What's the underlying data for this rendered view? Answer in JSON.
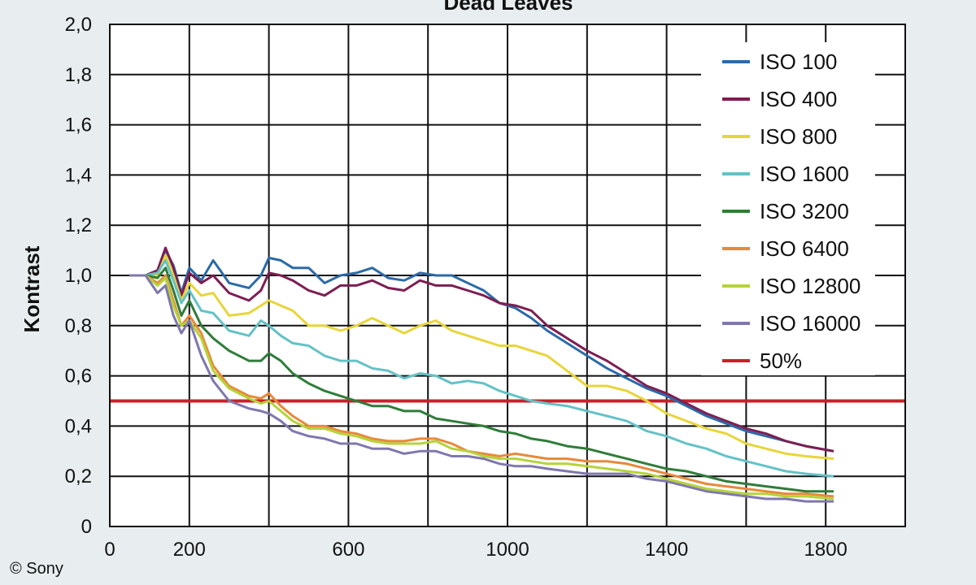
{
  "credit": "© Sony",
  "chart_data": {
    "type": "line",
    "title": "Dead Leaves",
    "xlabel": "",
    "ylabel": "Kontrast",
    "xlim": [
      0,
      2000
    ],
    "ylim": [
      0,
      2.0
    ],
    "x_ticks": [
      0,
      200,
      600,
      1000,
      1400,
      1800
    ],
    "x_tick_labels": [
      "0",
      "200",
      "600",
      "1000",
      "1400",
      "1800"
    ],
    "x_gridlines": [
      200,
      400,
      600,
      800,
      1000,
      1200,
      1400,
      1600,
      1800
    ],
    "y_ticks": [
      0,
      0.2,
      0.4,
      0.6,
      0.8,
      1.0,
      1.2,
      1.4,
      1.6,
      1.8,
      2.0
    ],
    "y_tick_labels": [
      "0",
      "0,2",
      "0,4",
      "0,6",
      "0,8",
      "1,0",
      "1,2",
      "1,4",
      "1,6",
      "1,8",
      "2,0"
    ],
    "grid": true,
    "legend_position": "top-right",
    "reference_line": {
      "name": "50%",
      "y": 0.5,
      "color": "#c8202a"
    },
    "series": [
      {
        "name": "ISO 100",
        "color": "#2b6aa8",
        "x": [
          50,
          90,
          120,
          140,
          160,
          180,
          200,
          230,
          260,
          300,
          350,
          380,
          400,
          430,
          460,
          500,
          540,
          580,
          620,
          660,
          700,
          740,
          780,
          820,
          860,
          900,
          940,
          980,
          1020,
          1060,
          1100,
          1150,
          1200,
          1250,
          1300,
          1350,
          1400,
          1450,
          1500,
          1550,
          1600,
          1650,
          1700,
          1750,
          1820
        ],
        "y": [
          1.0,
          1.0,
          1.02,
          1.1,
          1.04,
          0.93,
          1.03,
          0.98,
          1.06,
          0.97,
          0.95,
          1.0,
          1.07,
          1.06,
          1.03,
          1.03,
          0.97,
          1.0,
          1.01,
          1.03,
          0.99,
          0.98,
          1.01,
          1.0,
          1.0,
          0.97,
          0.94,
          0.89,
          0.87,
          0.83,
          0.78,
          0.73,
          0.68,
          0.63,
          0.59,
          0.55,
          0.52,
          0.48,
          0.44,
          0.41,
          0.38,
          0.36,
          0.34,
          0.32,
          0.3
        ]
      },
      {
        "name": "ISO 400",
        "color": "#7d1e52",
        "x": [
          50,
          90,
          120,
          140,
          160,
          180,
          200,
          230,
          260,
          300,
          350,
          380,
          400,
          430,
          460,
          500,
          540,
          580,
          620,
          660,
          700,
          740,
          780,
          820,
          860,
          900,
          940,
          980,
          1020,
          1060,
          1100,
          1150,
          1200,
          1250,
          1300,
          1350,
          1400,
          1450,
          1500,
          1550,
          1600,
          1650,
          1700,
          1750,
          1820
        ],
        "y": [
          1.0,
          1.0,
          1.02,
          1.11,
          1.03,
          0.92,
          1.01,
          0.97,
          1.0,
          0.93,
          0.9,
          0.94,
          1.01,
          1.0,
          0.98,
          0.94,
          0.92,
          0.96,
          0.96,
          0.98,
          0.95,
          0.94,
          0.98,
          0.96,
          0.96,
          0.94,
          0.92,
          0.89,
          0.88,
          0.86,
          0.8,
          0.75,
          0.7,
          0.66,
          0.61,
          0.56,
          0.53,
          0.49,
          0.45,
          0.42,
          0.39,
          0.37,
          0.34,
          0.32,
          0.3
        ]
      },
      {
        "name": "ISO 800",
        "color": "#e8d53a",
        "x": [
          50,
          90,
          120,
          140,
          160,
          180,
          200,
          230,
          260,
          300,
          350,
          380,
          400,
          430,
          460,
          500,
          540,
          580,
          620,
          660,
          700,
          740,
          780,
          820,
          860,
          900,
          940,
          980,
          1020,
          1060,
          1100,
          1150,
          1200,
          1250,
          1300,
          1350,
          1400,
          1450,
          1500,
          1550,
          1600,
          1650,
          1700,
          1750,
          1820
        ],
        "y": [
          1.0,
          1.0,
          1.0,
          1.08,
          1.0,
          0.9,
          0.97,
          0.92,
          0.93,
          0.84,
          0.85,
          0.88,
          0.9,
          0.88,
          0.86,
          0.8,
          0.8,
          0.78,
          0.8,
          0.83,
          0.8,
          0.77,
          0.8,
          0.82,
          0.78,
          0.76,
          0.74,
          0.72,
          0.72,
          0.7,
          0.68,
          0.62,
          0.56,
          0.56,
          0.54,
          0.5,
          0.45,
          0.42,
          0.39,
          0.37,
          0.33,
          0.31,
          0.29,
          0.28,
          0.27
        ]
      },
      {
        "name": "ISO 1600",
        "color": "#64c2c6",
        "x": [
          50,
          90,
          120,
          140,
          160,
          180,
          200,
          230,
          260,
          300,
          350,
          380,
          400,
          430,
          460,
          500,
          540,
          580,
          620,
          660,
          700,
          740,
          780,
          820,
          860,
          900,
          940,
          980,
          1020,
          1060,
          1100,
          1150,
          1200,
          1250,
          1300,
          1350,
          1400,
          1450,
          1500,
          1550,
          1600,
          1650,
          1700,
          1750,
          1820
        ],
        "y": [
          1.0,
          1.0,
          1.01,
          1.06,
          0.98,
          0.89,
          0.94,
          0.86,
          0.85,
          0.78,
          0.76,
          0.82,
          0.8,
          0.76,
          0.73,
          0.72,
          0.68,
          0.66,
          0.66,
          0.63,
          0.62,
          0.59,
          0.61,
          0.6,
          0.57,
          0.58,
          0.57,
          0.54,
          0.52,
          0.5,
          0.49,
          0.48,
          0.46,
          0.44,
          0.42,
          0.38,
          0.36,
          0.33,
          0.31,
          0.28,
          0.26,
          0.24,
          0.22,
          0.21,
          0.2
        ]
      },
      {
        "name": "ISO 3200",
        "color": "#2f7d3a",
        "x": [
          50,
          90,
          120,
          140,
          160,
          180,
          200,
          230,
          260,
          300,
          350,
          380,
          400,
          430,
          460,
          500,
          540,
          580,
          620,
          660,
          700,
          740,
          780,
          820,
          860,
          900,
          940,
          980,
          1020,
          1060,
          1100,
          1150,
          1200,
          1250,
          1300,
          1350,
          1400,
          1450,
          1500,
          1550,
          1600,
          1650,
          1700,
          1750,
          1820
        ],
        "y": [
          1.0,
          1.0,
          0.99,
          1.03,
          0.94,
          0.84,
          0.9,
          0.8,
          0.75,
          0.7,
          0.66,
          0.66,
          0.69,
          0.66,
          0.61,
          0.57,
          0.54,
          0.52,
          0.5,
          0.48,
          0.48,
          0.46,
          0.46,
          0.43,
          0.42,
          0.41,
          0.4,
          0.38,
          0.37,
          0.35,
          0.34,
          0.32,
          0.31,
          0.29,
          0.27,
          0.25,
          0.23,
          0.22,
          0.2,
          0.18,
          0.17,
          0.16,
          0.15,
          0.14,
          0.14
        ]
      },
      {
        "name": "ISO 6400",
        "color": "#e8893a",
        "x": [
          50,
          90,
          120,
          140,
          160,
          180,
          200,
          230,
          260,
          300,
          350,
          380,
          400,
          430,
          460,
          500,
          540,
          580,
          620,
          660,
          700,
          740,
          780,
          820,
          860,
          900,
          940,
          980,
          1020,
          1060,
          1100,
          1150,
          1200,
          1250,
          1300,
          1350,
          1400,
          1450,
          1500,
          1550,
          1600,
          1650,
          1700,
          1750,
          1820
        ],
        "y": [
          1.0,
          1.0,
          0.97,
          1.0,
          0.9,
          0.8,
          0.84,
          0.77,
          0.64,
          0.56,
          0.52,
          0.51,
          0.53,
          0.48,
          0.44,
          0.4,
          0.4,
          0.38,
          0.37,
          0.35,
          0.34,
          0.34,
          0.35,
          0.35,
          0.33,
          0.3,
          0.29,
          0.28,
          0.29,
          0.28,
          0.27,
          0.27,
          0.26,
          0.26,
          0.25,
          0.23,
          0.21,
          0.19,
          0.17,
          0.16,
          0.15,
          0.14,
          0.13,
          0.13,
          0.12
        ]
      },
      {
        "name": "ISO 12800",
        "color": "#b5d33a",
        "x": [
          50,
          90,
          120,
          140,
          160,
          180,
          200,
          230,
          260,
          300,
          350,
          380,
          400,
          430,
          460,
          500,
          540,
          580,
          620,
          660,
          700,
          740,
          780,
          820,
          860,
          900,
          940,
          980,
          1020,
          1060,
          1100,
          1150,
          1200,
          1250,
          1300,
          1350,
          1400,
          1450,
          1500,
          1550,
          1600,
          1650,
          1700,
          1750,
          1820
        ],
        "y": [
          1.0,
          1.0,
          0.96,
          0.99,
          0.88,
          0.8,
          0.82,
          0.75,
          0.62,
          0.55,
          0.51,
          0.49,
          0.5,
          0.46,
          0.42,
          0.39,
          0.39,
          0.37,
          0.36,
          0.34,
          0.33,
          0.33,
          0.33,
          0.34,
          0.31,
          0.3,
          0.28,
          0.27,
          0.27,
          0.26,
          0.25,
          0.25,
          0.24,
          0.23,
          0.22,
          0.21,
          0.19,
          0.17,
          0.15,
          0.14,
          0.13,
          0.13,
          0.12,
          0.12,
          0.11
        ]
      },
      {
        "name": "ISO 16000",
        "color": "#7f78ad",
        "x": [
          50,
          90,
          120,
          140,
          160,
          180,
          200,
          230,
          260,
          300,
          350,
          380,
          400,
          430,
          460,
          500,
          540,
          580,
          620,
          660,
          700,
          740,
          780,
          820,
          860,
          900,
          940,
          980,
          1020,
          1060,
          1100,
          1150,
          1200,
          1250,
          1300,
          1350,
          1400,
          1450,
          1500,
          1550,
          1600,
          1650,
          1700,
          1750,
          1820
        ],
        "y": [
          1.0,
          1.0,
          0.93,
          0.96,
          0.84,
          0.77,
          0.82,
          0.68,
          0.58,
          0.5,
          0.47,
          0.46,
          0.45,
          0.42,
          0.38,
          0.36,
          0.35,
          0.33,
          0.33,
          0.31,
          0.31,
          0.29,
          0.3,
          0.3,
          0.28,
          0.28,
          0.27,
          0.25,
          0.24,
          0.24,
          0.23,
          0.22,
          0.21,
          0.21,
          0.21,
          0.19,
          0.18,
          0.16,
          0.14,
          0.13,
          0.12,
          0.11,
          0.11,
          0.1,
          0.1
        ]
      }
    ]
  }
}
